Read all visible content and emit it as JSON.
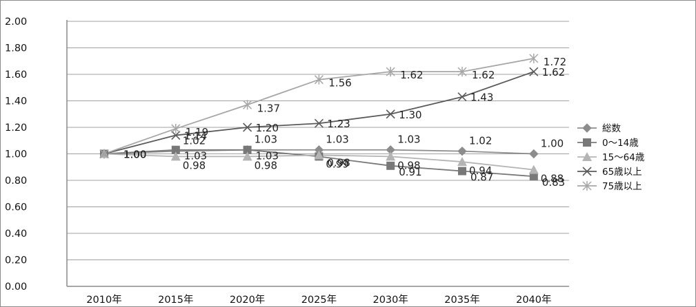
{
  "chart_data": {
    "type": "line",
    "categories": [
      "2010年",
      "2015年",
      "2020年",
      "2025年",
      "2030年",
      "2035年",
      "2040年"
    ],
    "ylim": [
      0,
      2
    ],
    "yticks": [
      "0.00",
      "0.20",
      "0.40",
      "0.60",
      "0.80",
      "1.00",
      "1.20",
      "1.40",
      "1.60",
      "1.80",
      "2.00"
    ],
    "grid": true,
    "legend_position": "right",
    "series": [
      {
        "name": "総数",
        "marker": "diamond",
        "color": "#8c8c8c",
        "values": [
          1.0,
          1.02,
          1.03,
          1.03,
          1.03,
          1.02,
          1.0
        ],
        "labels": [
          "1.00",
          "1.02",
          "1.03",
          "1.03",
          "1.03",
          "1.02",
          "1.00"
        ]
      },
      {
        "name": "0～14歳",
        "marker": "square",
        "color": "#787878",
        "values": [
          1.0,
          1.03,
          1.03,
          0.98,
          0.91,
          0.87,
          0.83
        ],
        "labels": [
          "1.00",
          "1.03",
          "1.03",
          "0.98",
          "0.91",
          "0.87",
          "0.83"
        ]
      },
      {
        "name": "15～64歳",
        "marker": "triangle",
        "color": "#b4b4b4",
        "values": [
          1.0,
          0.98,
          0.98,
          0.99,
          0.98,
          0.94,
          0.88
        ],
        "labels": [
          "1.00",
          "0.98",
          "0.98",
          "0.99",
          "0.98",
          "0.94",
          "0.88"
        ]
      },
      {
        "name": "65歳以上",
        "marker": "x",
        "color": "#5a5a5a",
        "values": [
          1.0,
          1.14,
          1.2,
          1.23,
          1.3,
          1.43,
          1.62
        ],
        "labels": [
          "1.00",
          "1.14",
          "1.20",
          "1.23",
          "1.30",
          "1.43",
          "1.62"
        ]
      },
      {
        "name": "75歳以上",
        "marker": "star",
        "color": "#a6a6a6",
        "values": [
          1.0,
          1.19,
          1.37,
          1.56,
          1.62,
          1.62,
          1.72
        ],
        "labels": [
          "1.00",
          "1.19",
          "1.37",
          "1.56",
          "1.62",
          "1.62",
          "1.72"
        ]
      }
    ]
  }
}
